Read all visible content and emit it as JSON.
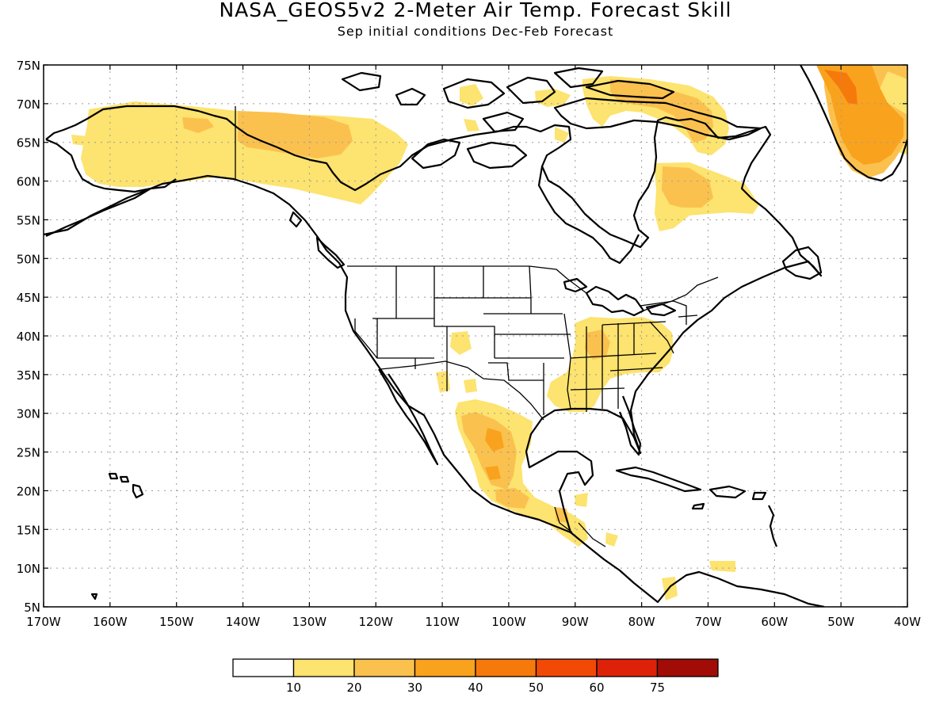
{
  "title": "NASA_GEOS5v2 2-Meter Air Temp. Forecast Skill",
  "subtitle": "Sep initial conditions  Dec-Feb Forecast",
  "lat_labels": [
    "75N",
    "70N",
    "65N",
    "60N",
    "55N",
    "50N",
    "45N",
    "40N",
    "35N",
    "30N",
    "25N",
    "20N",
    "15N",
    "10N",
    "5N"
  ],
  "lon_labels": [
    "170W",
    "160W",
    "150W",
    "140W",
    "130W",
    "120W",
    "110W",
    "100W",
    "90W",
    "80W",
    "70W",
    "60W",
    "50W",
    "40W"
  ],
  "colorbar": {
    "colors": [
      "#ffffff",
      "#fde36f",
      "#fbc14e",
      "#f9a21e",
      "#f6790c",
      "#f24a06",
      "#dd2209",
      "#a10c06"
    ],
    "labels": [
      "10",
      "20",
      "30",
      "40",
      "50",
      "60",
      "75"
    ]
  },
  "colors": {
    "light_yellow": "#fde36f",
    "yellow_orange": "#fbc14e",
    "orange": "#f9a21e",
    "dark_orange": "#f6790c",
    "red_orange": "#f24a06"
  }
}
